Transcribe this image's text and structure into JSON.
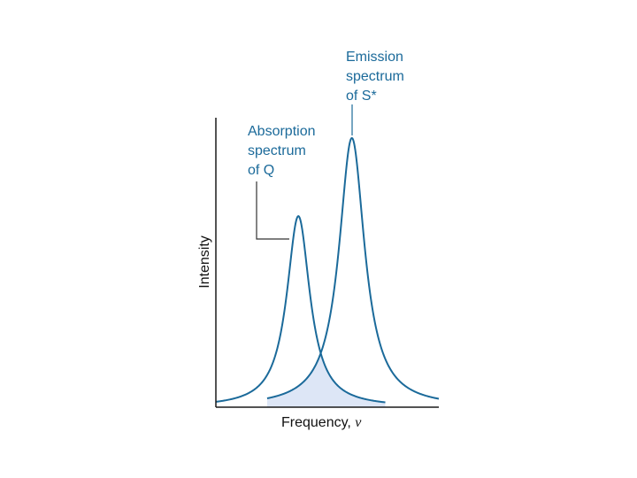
{
  "colors": {
    "curve": "#1b6a9a",
    "overlap_fill": "#dde6f6",
    "axis": "#1a1a1a",
    "leader_absorption": "#333333",
    "leader_emission": "#1b6a9a"
  },
  "chart_data": {
    "type": "line",
    "title": "",
    "xlabel_text": "Frequency, ",
    "xlabel_symbol": "ν",
    "ylabel": "Intensity",
    "show_tick_labels": false,
    "grid": false,
    "xlim": [
      0,
      100
    ],
    "ylim": [
      0,
      100
    ],
    "series": [
      {
        "label_lines": [
          "Absorption",
          "spectrum",
          "of Q"
        ],
        "shape": "lorentzian-like peak",
        "center": 37,
        "peak": 66,
        "halfwidth": 6.3,
        "x_range": [
          0,
          76
        ]
      },
      {
        "label_lines": [
          "Emission",
          "spectrum",
          "of S*"
        ],
        "shape": "lorentzian-like peak",
        "center": 61,
        "peak": 93,
        "halfwidth": 7.0,
        "x_range": [
          23,
          100
        ]
      }
    ],
    "shaded_overlap": true
  }
}
